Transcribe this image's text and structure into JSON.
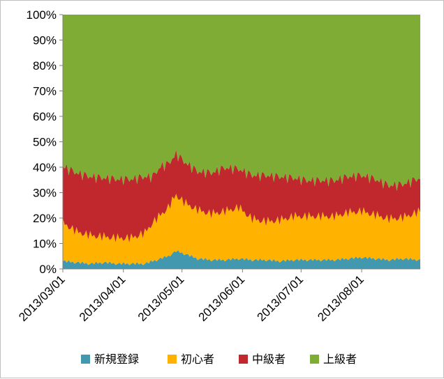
{
  "chart_data": {
    "type": "area",
    "stacked": true,
    "percent_stacked": true,
    "title": "",
    "xlabel": "",
    "ylabel": "",
    "ylim": [
      0,
      100
    ],
    "y_ticks": [
      "0%",
      "10%",
      "20%",
      "30%",
      "40%",
      "50%",
      "60%",
      "70%",
      "80%",
      "90%",
      "100%"
    ],
    "x_range": [
      "2013-03-01",
      "2013-08-31"
    ],
    "x_ticks": [
      "2013/03/01",
      "2013/04/01",
      "2013/05/01",
      "2013/06/01",
      "2013/07/01",
      "2013/08/01"
    ],
    "grid": false,
    "legend_position": "bottom",
    "x_keyframes": [
      "2013-03-01",
      "2013-03-08",
      "2013-03-15",
      "2013-03-22",
      "2013-03-29",
      "2013-04-05",
      "2013-04-12",
      "2013-04-16",
      "2013-04-20",
      "2013-04-24",
      "2013-04-28",
      "2013-05-02",
      "2013-05-09",
      "2013-05-16",
      "2013-05-23",
      "2013-05-30",
      "2013-06-06",
      "2013-06-13",
      "2013-06-20",
      "2013-06-27",
      "2013-07-04",
      "2013-07-11",
      "2013-07-18",
      "2013-07-25",
      "2013-08-01",
      "2013-08-08",
      "2013-08-15",
      "2013-08-22",
      "2013-08-31"
    ],
    "series": [
      {
        "name": "新規登録",
        "color": "#4198af",
        "values": [
          3,
          2.5,
          2,
          2.5,
          2,
          2,
          2,
          3,
          4,
          5,
          7,
          6,
          4,
          3.5,
          3.5,
          4,
          3.5,
          3.5,
          3,
          3.5,
          3.5,
          3.5,
          3.5,
          4,
          4.5,
          4,
          3.5,
          4,
          3.5
        ]
      },
      {
        "name": "初心者",
        "color": "#ffb300",
        "values": [
          15,
          12,
          11,
          10,
          10,
          10,
          12,
          15,
          17,
          19,
          22,
          20,
          19,
          18,
          19,
          20,
          16,
          15,
          16,
          17,
          17,
          17,
          17,
          18,
          18,
          17,
          16,
          16,
          19
        ]
      },
      {
        "name": "中級者",
        "color": "#c0282d",
        "values": [
          22,
          23,
          23,
          23,
          23,
          23,
          22,
          18,
          19,
          17,
          16,
          16,
          15,
          16,
          17,
          15,
          17,
          18,
          17,
          15,
          14,
          14,
          14,
          14,
          14,
          14,
          13,
          13,
          13
        ]
      },
      {
        "name": "上級者",
        "color": "#7fac34",
        "values": [
          60,
          62.5,
          64,
          64.5,
          65,
          65,
          64,
          64,
          60,
          59,
          55,
          58,
          62,
          62.5,
          60.5,
          61,
          63.5,
          63.5,
          64,
          64.5,
          65.5,
          65.5,
          65.5,
          64,
          63.5,
          65,
          67.5,
          67,
          64.5
        ]
      }
    ]
  }
}
